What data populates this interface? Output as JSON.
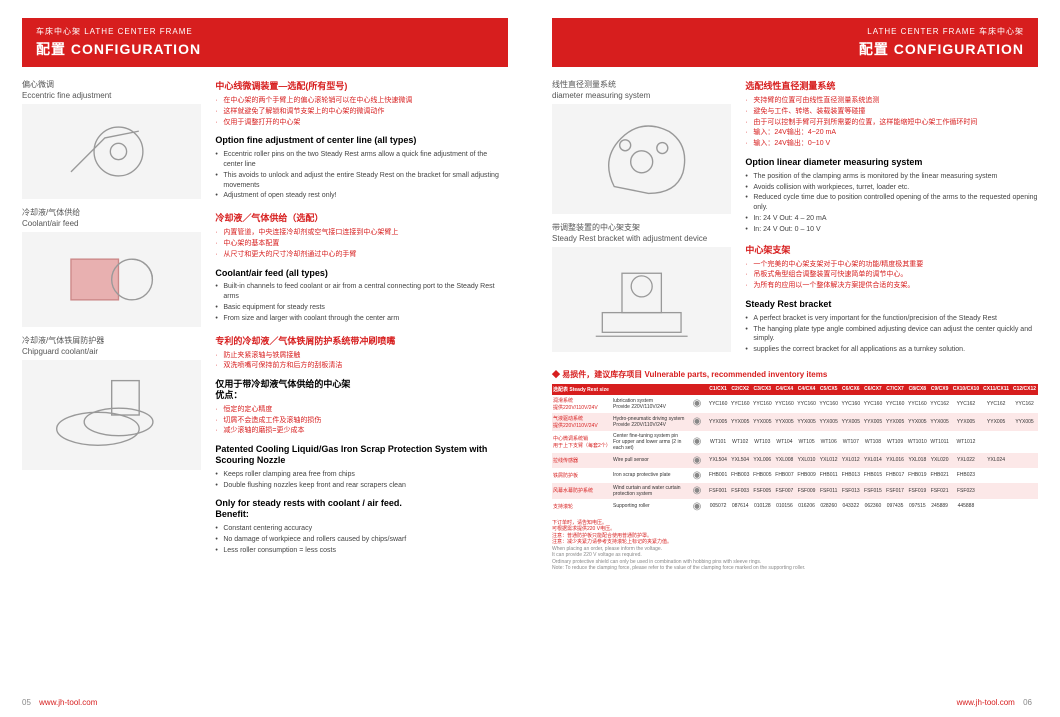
{
  "left": {
    "header": {
      "sub": "车床中心架  LATHE CENTER FRAME",
      "title": "配置 CONFIGURATION"
    },
    "sections": [
      {
        "label_cn": "偏心微调",
        "label_en": "Eccentric fine adjustment",
        "h_red": "中心线微调装置—选配(所有型号)",
        "bul_red": [
          "在中心架的两个手臂上的偏心滚轮销可以在中心线上快速微调",
          "这样就避免了解锁和调节支架上的中心架的微调动作",
          "仅用于调整打开的中心架"
        ],
        "h_blk": "Option fine adjustment of center line (all types)",
        "bul_blk": [
          "Eccentric roller pins on the two Steady Rest arms allow a quick fine adjustment of the center line",
          "This avoids to unlock and adjust the entire Steady Rest on the bracket for small adjusting movements",
          "Adjustment of open steady rest only!"
        ]
      },
      {
        "label_cn": "冷却液/气体供给",
        "label_en": "Coolant/air feed",
        "h_red": "冷却液／气体供给（选配）",
        "bul_red": [
          "内置管道，中央连接冷却剂或空气接口连接到中心架臂上",
          "中心架的基本配置",
          "从尺寸和更大的尺寸冷却剂通过中心的手臂"
        ],
        "h_blk": "Coolant/air feed (all types)",
        "bul_blk": [
          "Built-in channels to feed coolant or air from a central connecting port to the Steady Rest arms",
          "Basic equipment for steady rests",
          "From size and larger with coolant through the center arm"
        ]
      },
      {
        "label_cn": "冷却液/气体铁屑防护器",
        "label_en": "Chipguard coolant/air",
        "h_red": "专利的冷却液／气体铁屑防护系统带冲刷喷嘴",
        "bul_red": [
          "防止夹紧滚轴与铁屑接触",
          "双洗喷嘴可保持前方和后方的刮板清洁"
        ],
        "h_sub": "仅用于带冷却液气体供给的中心架\n优点：",
        "bul_red2": [
          "恒定的定心精度",
          "切屑不会造成工件及滚轴的损伤",
          "减少滚轴的磨损=更少成本"
        ],
        "h_blk": "Patented Cooling Liquid/Gas Iron Scrap Protection System with Scouring Nozzle",
        "bul_blk": [
          "Keeps roller clamping area free from chips",
          "Double flushing nozzles keep front and rear scrapers clean"
        ],
        "h_sub2": "Only for steady rests with coolant / air feed.\nBenefit:",
        "bul_blk2": [
          "Constant centering accuracy",
          "No damage of workpiece and rollers caused by chips/swarf",
          "Less roller consumption = less costs"
        ]
      }
    ],
    "footer": {
      "page": "05",
      "url": "www.jh-tool.com"
    }
  },
  "right": {
    "header": {
      "sub": "LATHE CENTER FRAME  车床中心架",
      "title": "配置 CONFIGURATION"
    },
    "sections": [
      {
        "label_cn": "线性直径测量系统",
        "label_en": "diameter measuring system",
        "h_red": "选配线性直径测量系统",
        "bul_red": [
          "夹持臂的位置可由线性直径测量系统追测",
          "避免与工件、转塔、装载装置等碰撞",
          "由于可以控制手臂可开到所需要的位置，这样能缩短中心架工作循环时间",
          "输入：24V输出：4~20 mA",
          "输入：24V输出：0~10 V"
        ],
        "h_blk": "Option linear diameter measuring system",
        "bul_blk": [
          "The position of the clamping arms is monitored by the linear measuring system",
          "Avoids collision with workpieces, turret, loader etc.",
          "Reduced cycle time due to position controlled opening of the arms to the requested opening only.",
          "In: 24 V      Out: 4 – 20 mA",
          "In: 24 V      Out: 0 – 10 V"
        ]
      },
      {
        "label_cn": "带调整装置的中心架支架",
        "label_en": "Steady Rest bracket with adjustment device",
        "h_red": "中心架支架",
        "bul_red": [
          "一个完美的中心架支架对于中心架的功能/精度极其重要",
          "吊板式角型组合调整装置可快速简单的调节中心。",
          "为所有的应用以一个整体解决方案提供合适的支架。"
        ],
        "h_blk": "Steady Rest bracket",
        "bul_blk": [
          "A perfect bracket is very important for the function/precision of the Steady Rest",
          "The hanging plate type angle combined adjusting device can adjust the center quickly and simply.",
          "supplies the correct bracket for all applications as a turnkey solution."
        ]
      }
    ],
    "inventory": {
      "title": "◆ 易损件，建议库存项目   Vulnerable parts, recommended inventory items",
      "head_label": "选配表  Steady Rest size",
      "cols": [
        "C1/CX1",
        "C2/CX2",
        "C3/CX3",
        "C4/CX4",
        "C4/CX4",
        "C5/CX5",
        "C6/CX6",
        "C6/CX7",
        "C7/CX7",
        "C8/CX8",
        "C9/CX9",
        "CX10/CX10",
        "CX11/CX11",
        "C12/CX12"
      ],
      "rows": [
        {
          "cn": "润滑系统\n提供220V/110V/24V",
          "en": "lubrication system\nProvide 220V/110V/24V",
          "vals": [
            "YYC160",
            "YYC160",
            "YYC160",
            "YYC160",
            "YYC160",
            "YYC160",
            "YYC160",
            "YYC160",
            "YYC160",
            "YYC160",
            "YYC162",
            "YYC162",
            "YYC162",
            "YYC162"
          ]
        },
        {
          "cn": "气液驱动系统\n提供220V/110V/24V",
          "en": "Hydro-pneumatic driving system\nProvide 220V/110V/24V",
          "vals": [
            "YYX005",
            "YYX005",
            "YYX005",
            "YYX005",
            "YYX005",
            "YYX005",
            "YYX005",
            "YYX005",
            "YYX005",
            "YYX005",
            "YYX005",
            "YYX005",
            "YYX005",
            "YYX005"
          ],
          "pink": true
        },
        {
          "cn": "中心微调系统销\n用于上下支臂（每套2个）",
          "en": "Center fine-tuning system pin\nFor upper and lower arms (2 in each set)",
          "vals": [
            "WT101",
            "WT102",
            "WT103",
            "WT104",
            "WT105",
            "WT106",
            "WT107",
            "WT108",
            "WT109",
            "WT1010",
            "WT1011",
            "WT1012",
            "",
            ""
          ]
        },
        {
          "cn": "拉线传感器",
          "en": "Wire pull sensor",
          "vals": [
            "YXL504",
            "YXL504",
            "YXL006",
            "YXL008",
            "YXL010",
            "YXL012",
            "YXL012",
            "YXL014",
            "YXL016",
            "YXL018",
            "YXL020",
            "YXL022",
            "YXL024",
            ""
          ],
          "pink": true
        },
        {
          "cn": "铁屑防护板",
          "en": "Iron scrap protective plate",
          "vals": [
            "FHB001",
            "FHB003",
            "FHB005",
            "FHB007",
            "FHB009",
            "FHB011",
            "FHB013",
            "FHB015",
            "FHB017",
            "FHB019",
            "FHB021",
            "FHB023",
            "",
            ""
          ]
        },
        {
          "cn": "风幕水幕防护系统",
          "en": "Wind curtain and water curtain protection system",
          "vals": [
            "FSF001",
            "FSF003",
            "FSF005",
            "FSF007",
            "FSF009",
            "FSF011",
            "FSF013",
            "FSF015",
            "FSF017",
            "FSF019",
            "FSF021",
            "FSF023",
            "",
            ""
          ],
          "pink": true
        },
        {
          "cn": "支持滚轮",
          "en": "Supporting roller",
          "vals": [
            "005072",
            "087614",
            "010128",
            "010156",
            "016206",
            "028260",
            "043322",
            "062360",
            "097435",
            "097515",
            "245889",
            "445888",
            "",
            ""
          ]
        }
      ],
      "notes_cn": "下订单时，请告知电压。\n可根据需求提供220 V电压。\n注意：普通防护板只能配合使用普通防护罩。\n注意：减少夹紧力请参考支持滚轮上标记的夹紧力值。",
      "notes_en": "When placing an order, please inform the voltage.\nIt can provide 220 V voltage as required.\nOrdinary protective shield can only be used in combination with hobbing pins with sleeve rings.\nNote: To reduce the clamping force, please refer to the value of the clamping force marked on the supporting roller."
    },
    "footer": {
      "url": "www.jh-tool.com",
      "page": "06"
    }
  }
}
